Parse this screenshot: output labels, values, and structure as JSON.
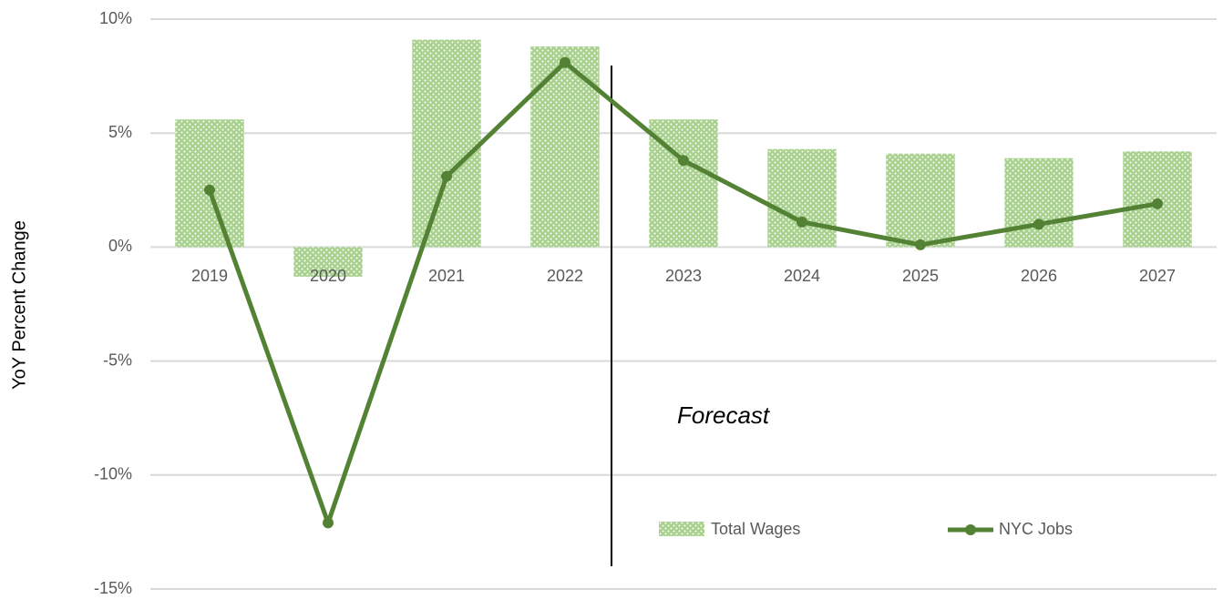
{
  "chart_data": {
    "type": "bar_line",
    "y_label": "YoY Percent Change",
    "annotation": "Forecast",
    "categories": [
      "2019",
      "2020",
      "2021",
      "2022",
      "2023",
      "2024",
      "2025",
      "2026",
      "2027"
    ],
    "series": [
      {
        "name": "Total Wages",
        "type": "bar",
        "color": "#a9d18e",
        "values": [
          5.6,
          -1.3,
          9.1,
          8.8,
          5.6,
          4.3,
          4.1,
          3.9,
          4.2
        ]
      },
      {
        "name": "NYC Jobs",
        "type": "line",
        "color": "#548235",
        "values": [
          2.5,
          -12.1,
          3.1,
          8.1,
          3.8,
          1.1,
          0.1,
          1.0,
          1.9
        ]
      }
    ],
    "ylim": [
      -15,
      10
    ],
    "yticks": [
      {
        "value": -15,
        "label": "-15%"
      },
      {
        "value": -10,
        "label": "-10%"
      },
      {
        "value": -5,
        "label": "-5%"
      },
      {
        "value": 0,
        "label": "0%"
      },
      {
        "value": 5,
        "label": "5%"
      },
      {
        "value": 10,
        "label": "10%"
      }
    ],
    "grid": true
  }
}
